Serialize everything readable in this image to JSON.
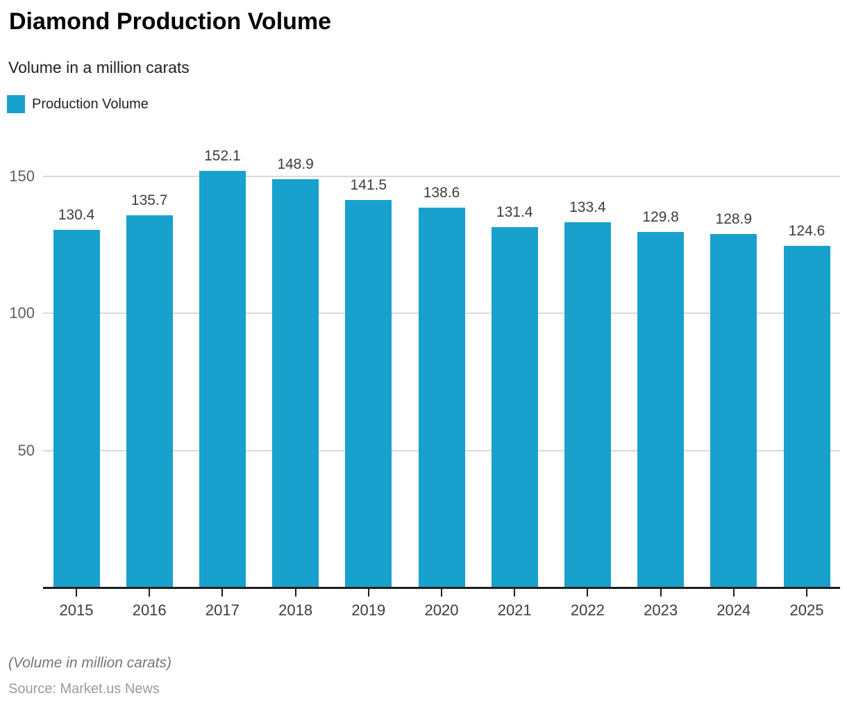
{
  "header": {
    "title": "Diamond Production Volume",
    "subtitle": "Volume in a million carats",
    "legend": [
      {
        "label": "Production Volume",
        "color": "#18a1cd"
      }
    ]
  },
  "chart_data": {
    "type": "bar",
    "title": "Diamond Production Volume",
    "subtitle": "Volume in a million carats",
    "categories": [
      "2015",
      "2016",
      "2017",
      "2018",
      "2019",
      "2020",
      "2021",
      "2022",
      "2023",
      "2024",
      "2025"
    ],
    "series": [
      {
        "name": "Production Volume",
        "values": [
          130.4,
          135.7,
          152.1,
          148.9,
          141.5,
          138.6,
          131.4,
          133.4,
          129.8,
          128.9,
          124.6
        ]
      }
    ],
    "xlabel": "",
    "ylabel": "",
    "yticks": [
      50,
      100,
      150
    ],
    "ylim": [
      0,
      160
    ],
    "grid": true,
    "legend_position": "top-left",
    "bar_color": "#18a1cd",
    "gridline_color": "#d9d9d9",
    "axis_color": "#1d1d1d",
    "data_labels_shown": true
  },
  "footer": {
    "note": "(Volume in million carats)",
    "source": "Source: Market.us News"
  }
}
